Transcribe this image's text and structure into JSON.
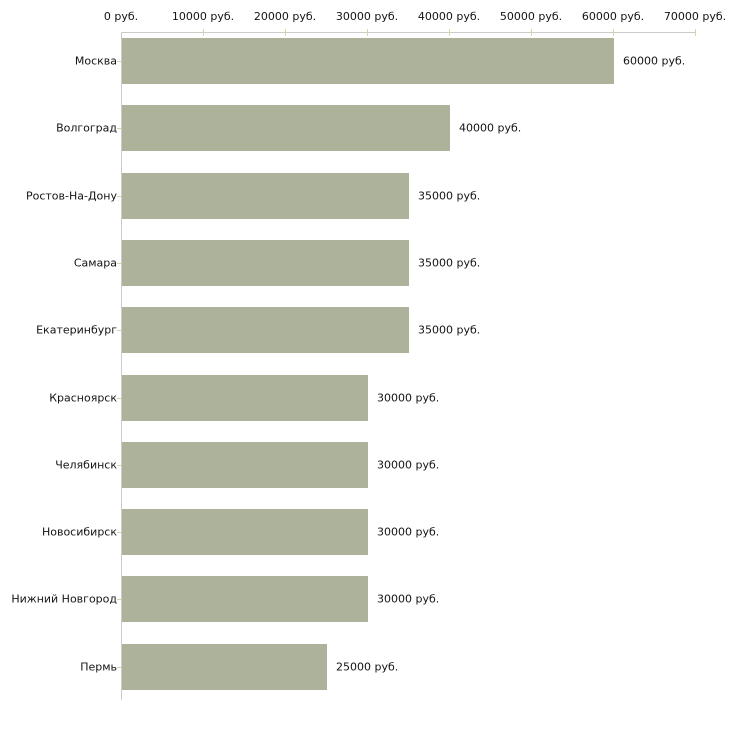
{
  "chart_data": {
    "type": "bar",
    "orientation": "horizontal",
    "title": "",
    "xlabel": "",
    "ylabel": "",
    "categories": [
      "Москва",
      "Волгоград",
      "Ростов-На-Дону",
      "Самара",
      "Екатеринбург",
      "Красноярск",
      "Челябинск",
      "Новосибирск",
      "Нижний Новгород",
      "Пермь"
    ],
    "values": [
      60000,
      40000,
      35000,
      35000,
      35000,
      30000,
      30000,
      30000,
      30000,
      25000
    ],
    "value_labels": [
      "60000 руб.",
      "40000 руб.",
      "35000 руб.",
      "35000 руб.",
      "35000 руб.",
      "30000 руб.",
      "30000 руб.",
      "30000 руб.",
      "30000 руб.",
      "25000 руб."
    ],
    "x_tick_labels": [
      "0 руб.",
      "10000 руб.",
      "20000 руб.",
      "30000 руб.",
      "40000 руб.",
      "50000 руб.",
      "60000 руб.",
      "70000 руб."
    ],
    "xlim": [
      0,
      70000
    ],
    "x_tick_step": 10000,
    "unit": "руб.",
    "grid": false,
    "legend": false,
    "axis_position": "top",
    "colors": {
      "bar": "#adb29b",
      "axis_line": "#cbcbcb",
      "tick": "#d8d4a8",
      "text": "#141414",
      "background": "#ffffff"
    }
  }
}
